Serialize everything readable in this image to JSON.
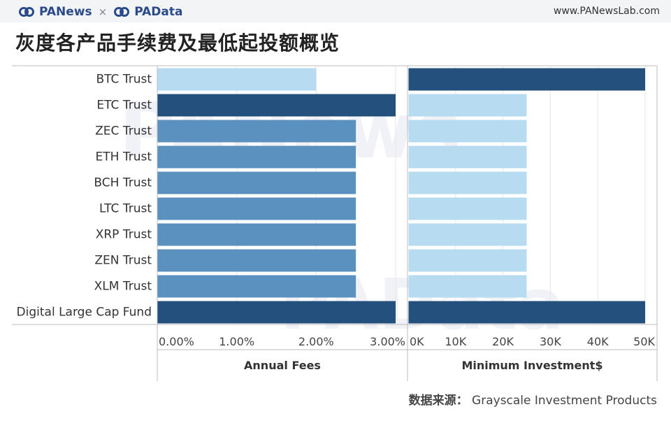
{
  "header": {
    "brand_left": "PANews",
    "separator": "×",
    "brand_right": "PAData",
    "site_url": "www.PANewsLab.com"
  },
  "title": "灰度各产品手续费及最低起投额概览",
  "footer": {
    "source_label": "数据来源：",
    "source_value": "Grayscale Investment Products"
  },
  "watermark": [
    "PANews",
    "PAData"
  ],
  "colors": {
    "dark": "#24507d",
    "mid": "#5b91bf",
    "light": "#b7dbf0",
    "axis": "#bcbcbc",
    "grid": "#e6e6e6",
    "watermark": "#eef1f6"
  },
  "chart_data": {
    "type": "bar",
    "orientation": "horizontal",
    "categories": [
      "BTC Trust",
      "ETC Trust",
      "ZEC Trust",
      "ETH Trust",
      "BCH Trust",
      "LTC Trust",
      "XRP Trust",
      "ZEN Trust",
      "XLM Trust",
      "Digital Large Cap Fund"
    ],
    "panels": [
      {
        "xlabel": "Annual Fees",
        "values": [
          0.02,
          0.03,
          0.025,
          0.025,
          0.025,
          0.025,
          0.025,
          0.025,
          0.025,
          0.03
        ],
        "xlim": [
          0,
          0.03
        ],
        "ticks": [
          0,
          0.01,
          0.02,
          0.03
        ],
        "tick_labels": [
          "0.00%",
          "1.00%",
          "2.00%",
          "3.00%"
        ],
        "bar_colors": [
          "light",
          "dark",
          "mid",
          "mid",
          "mid",
          "mid",
          "mid",
          "mid",
          "mid",
          "dark"
        ]
      },
      {
        "xlabel": "Minimum Investment$",
        "values": [
          50000,
          25000,
          25000,
          25000,
          25000,
          25000,
          25000,
          25000,
          25000,
          50000
        ],
        "xlim": [
          0,
          50000
        ],
        "ticks": [
          0,
          10000,
          20000,
          30000,
          40000,
          50000
        ],
        "tick_labels": [
          "0K",
          "10K",
          "20K",
          "30K",
          "40K",
          "50K"
        ],
        "bar_colors": [
          "dark",
          "light",
          "light",
          "light",
          "light",
          "light",
          "light",
          "light",
          "light",
          "dark"
        ]
      }
    ]
  }
}
